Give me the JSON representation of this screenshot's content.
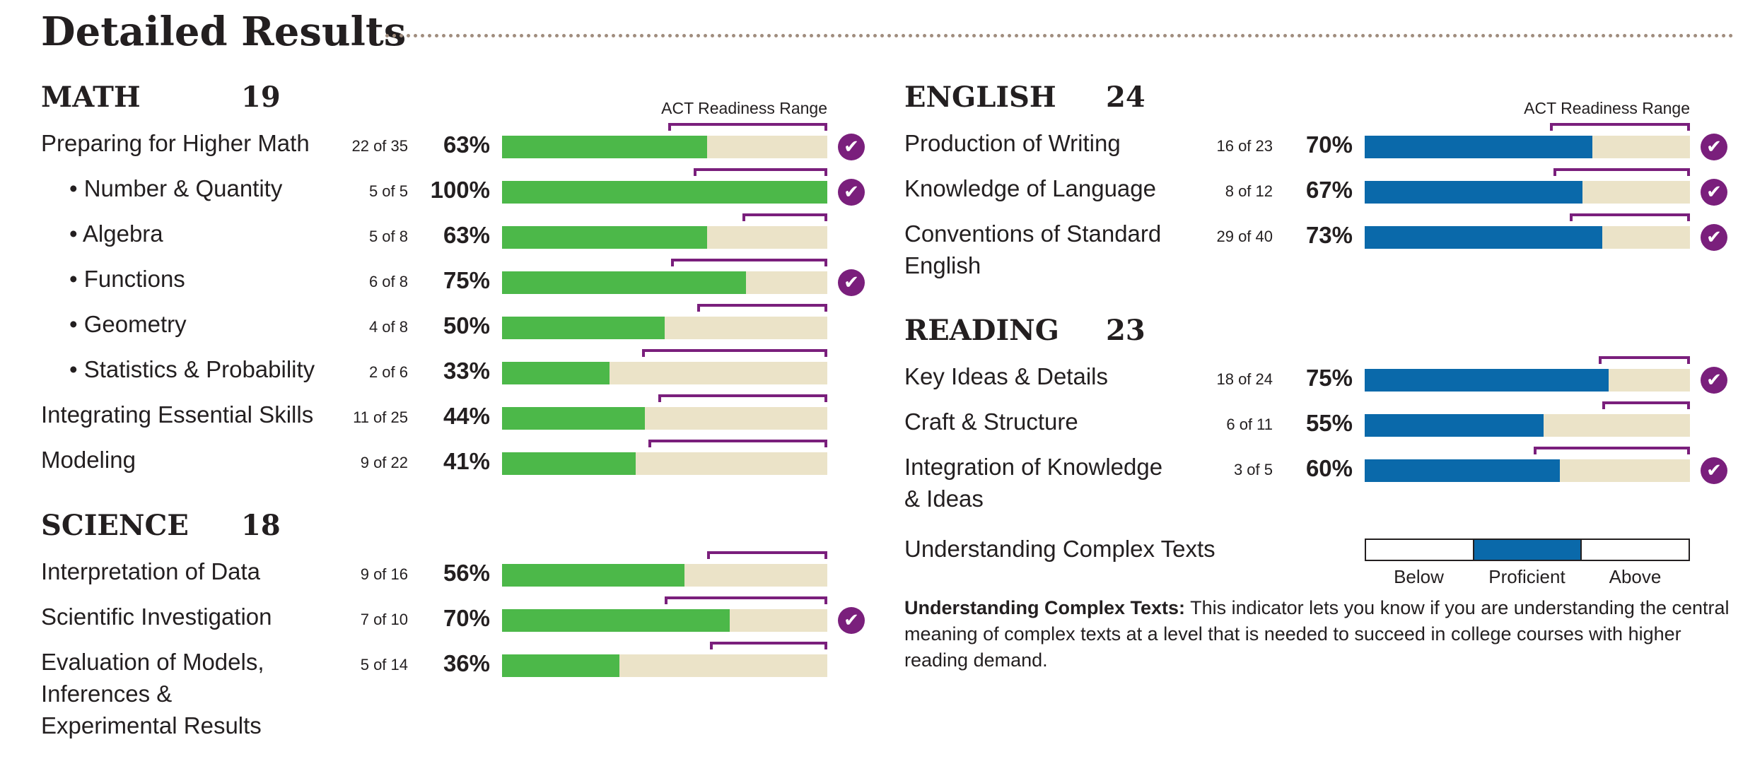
{
  "page": {
    "title": "Detailed Results"
  },
  "range_label": "ACT Readiness Range",
  "checkmark_icon": "checkmark-circle-icon",
  "colors": {
    "math_science_bar": "#4cb849",
    "english_reading_bar": "#0a69aa",
    "bar_background": "#ebe3c8",
    "readiness_bracket": "#7a1f7c",
    "check_badge": "#7a1f7c"
  },
  "chart_data": [
    {
      "type": "bar",
      "orientation": "horizontal",
      "section": "MATH",
      "score": "19",
      "value_unit": "percent",
      "xlim": [
        0,
        100
      ],
      "categories": [
        "Preparing for Higher Math",
        "• Number & Quantity",
        "• Algebra",
        "• Functions",
        "• Geometry",
        "• Statistics & Probability",
        "Integrating Essential Skills",
        "Modeling"
      ],
      "counts": [
        "22 of 35",
        "5 of 5",
        "5 of 8",
        "6 of 8",
        "4 of 8",
        "2 of 6",
        "11 of 25",
        "9 of 22"
      ],
      "value_labels": [
        "63%",
        "100%",
        "63%",
        "75%",
        "50%",
        "33%",
        "44%",
        "41%"
      ],
      "values": [
        63,
        100,
        63,
        75,
        50,
        33,
        44,
        41
      ],
      "readiness_range_start": [
        51,
        59,
        74,
        52,
        60,
        43,
        48,
        45
      ],
      "readiness_range_end": [
        100,
        100,
        100,
        100,
        100,
        100,
        100,
        100
      ],
      "meets_readiness": [
        true,
        true,
        false,
        true,
        false,
        false,
        false,
        false
      ]
    },
    {
      "type": "bar",
      "orientation": "horizontal",
      "section": "SCIENCE",
      "score": "18",
      "value_unit": "percent",
      "xlim": [
        0,
        100
      ],
      "categories": [
        "Interpretation of Data",
        "Scientific Investigation",
        "Evaluation of Models, Inferences & Experimental Results"
      ],
      "counts": [
        "9 of 16",
        "7 of 10",
        "5 of 14"
      ],
      "value_labels": [
        "56%",
        "70%",
        "36%"
      ],
      "values": [
        56,
        70,
        36
      ],
      "readiness_range_start": [
        63,
        50,
        64
      ],
      "readiness_range_end": [
        100,
        100,
        100
      ],
      "meets_readiness": [
        false,
        true,
        false
      ]
    },
    {
      "type": "bar",
      "orientation": "horizontal",
      "section": "ENGLISH",
      "score": "24",
      "value_unit": "percent",
      "xlim": [
        0,
        100
      ],
      "categories": [
        "Production of Writing",
        "Knowledge of Language",
        "Conventions of Standard English"
      ],
      "counts": [
        "16 of 23",
        "8 of 12",
        "29 of 40"
      ],
      "value_labels": [
        "70%",
        "67%",
        "73%"
      ],
      "values": [
        70,
        67,
        73
      ],
      "readiness_range_start": [
        57,
        58,
        63
      ],
      "readiness_range_end": [
        100,
        100,
        100
      ],
      "meets_readiness": [
        true,
        true,
        true
      ]
    },
    {
      "type": "bar",
      "orientation": "horizontal",
      "section": "READING",
      "score": "23",
      "value_unit": "percent",
      "xlim": [
        0,
        100
      ],
      "categories": [
        "Key Ideas & Details",
        "Craft & Structure",
        "Integration of Knowledge & Ideas"
      ],
      "counts": [
        "18 of 24",
        "6 of 11",
        "3 of 5"
      ],
      "value_labels": [
        "75%",
        "55%",
        "60%"
      ],
      "values": [
        75,
        55,
        60
      ],
      "readiness_range_start": [
        72,
        73,
        52
      ],
      "readiness_range_end": [
        100,
        100,
        100
      ],
      "meets_readiness": [
        true,
        false,
        true
      ]
    }
  ],
  "complex_texts": {
    "label": "Understanding Complex Texts",
    "levels": [
      "Below",
      "Proficient",
      "Above"
    ],
    "selected": "Proficient",
    "note_title": "Understanding Complex Texts:",
    "note_body": " This indicator lets you know if you are understanding the central meaning of complex texts at a level that is needed to succeed in college courses with higher reading demand."
  }
}
